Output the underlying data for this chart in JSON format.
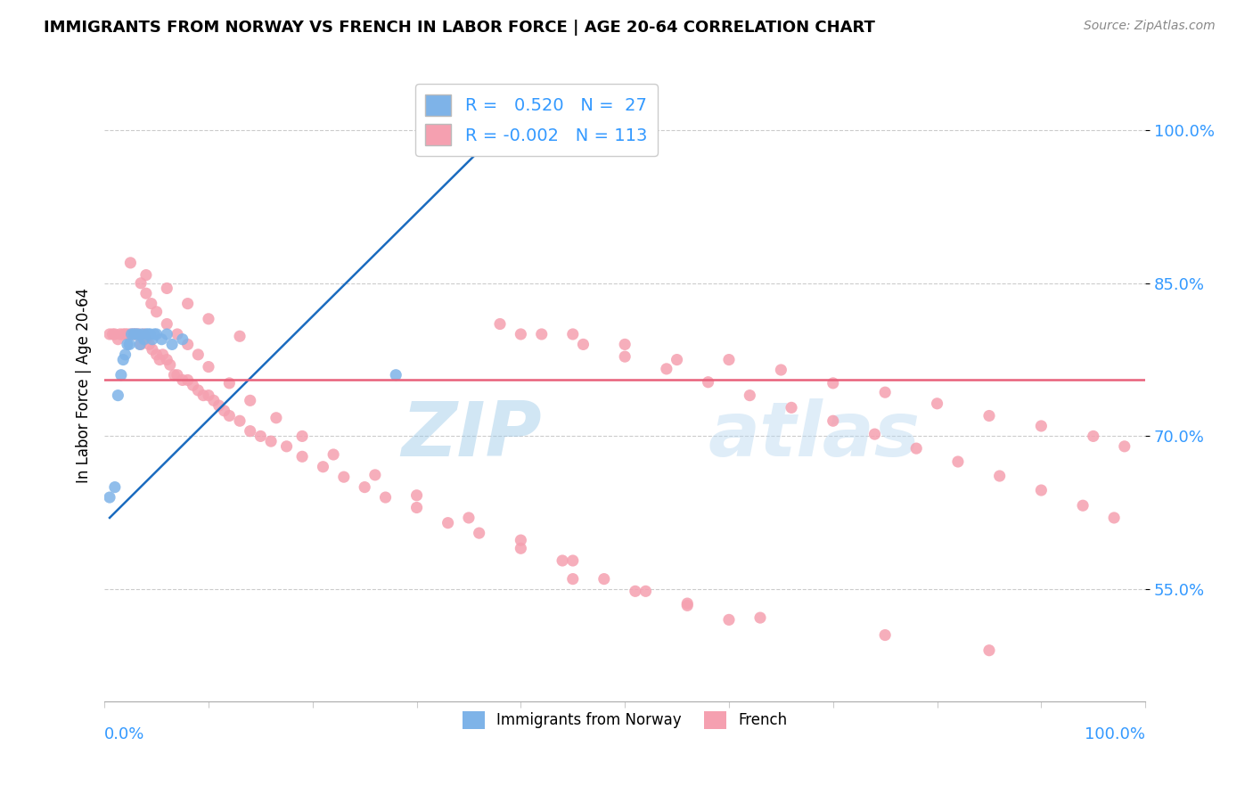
{
  "title": "IMMIGRANTS FROM NORWAY VS FRENCH IN LABOR FORCE | AGE 20-64 CORRELATION CHART",
  "source_text": "Source: ZipAtlas.com",
  "ylabel": "In Labor Force | Age 20-64",
  "xlim": [
    0.0,
    1.0
  ],
  "ylim": [
    0.44,
    1.06
  ],
  "yticks": [
    0.55,
    0.7,
    0.85,
    1.0
  ],
  "ytick_labels": [
    "55.0%",
    "70.0%",
    "85.0%",
    "100.0%"
  ],
  "legend_r_norway": "0.520",
  "legend_n_norway": "27",
  "legend_r_french": "-0.002",
  "legend_n_french": "113",
  "norway_color": "#7eb3e8",
  "french_color": "#f5a0b0",
  "norway_trend_color": "#1a6bbf",
  "french_trend_color": "#e8607a",
  "watermark_zip": "ZIP",
  "watermark_atlas": "atlas",
  "tick_color": "#3399ff",
  "norway_x": [
    0.005,
    0.01,
    0.013,
    0.016,
    0.018,
    0.02,
    0.022,
    0.024,
    0.026,
    0.028,
    0.03,
    0.032,
    0.034,
    0.036,
    0.038,
    0.04,
    0.042,
    0.044,
    0.046,
    0.048,
    0.05,
    0.055,
    0.06,
    0.065,
    0.075,
    0.28,
    0.38
  ],
  "norway_y": [
    0.64,
    0.65,
    0.74,
    0.76,
    0.775,
    0.78,
    0.79,
    0.79,
    0.8,
    0.8,
    0.8,
    0.8,
    0.79,
    0.8,
    0.795,
    0.8,
    0.8,
    0.8,
    0.795,
    0.8,
    0.8,
    0.795,
    0.8,
    0.79,
    0.795,
    0.76,
    0.985
  ],
  "french_x": [
    0.005,
    0.008,
    0.01,
    0.013,
    0.015,
    0.018,
    0.02,
    0.022,
    0.025,
    0.028,
    0.03,
    0.033,
    0.035,
    0.038,
    0.04,
    0.043,
    0.046,
    0.05,
    0.053,
    0.056,
    0.06,
    0.063,
    0.067,
    0.07,
    0.075,
    0.08,
    0.085,
    0.09,
    0.095,
    0.1,
    0.105,
    0.11,
    0.115,
    0.12,
    0.13,
    0.14,
    0.15,
    0.16,
    0.175,
    0.19,
    0.21,
    0.23,
    0.25,
    0.27,
    0.3,
    0.33,
    0.36,
    0.4,
    0.44,
    0.48,
    0.52,
    0.56,
    0.6,
    0.4,
    0.45,
    0.5,
    0.55,
    0.6,
    0.65,
    0.7,
    0.75,
    0.8,
    0.85,
    0.9,
    0.95,
    0.98,
    0.035,
    0.04,
    0.045,
    0.05,
    0.06,
    0.07,
    0.08,
    0.09,
    0.1,
    0.12,
    0.14,
    0.165,
    0.19,
    0.22,
    0.26,
    0.3,
    0.35,
    0.4,
    0.45,
    0.38,
    0.42,
    0.46,
    0.5,
    0.54,
    0.58,
    0.62,
    0.66,
    0.7,
    0.74,
    0.78,
    0.82,
    0.86,
    0.9,
    0.94,
    0.97,
    0.025,
    0.04,
    0.06,
    0.08,
    0.1,
    0.13,
    0.45,
    0.51,
    0.56,
    0.63,
    0.75,
    0.85
  ],
  "french_y": [
    0.8,
    0.8,
    0.8,
    0.795,
    0.8,
    0.8,
    0.8,
    0.8,
    0.8,
    0.8,
    0.8,
    0.8,
    0.79,
    0.8,
    0.795,
    0.79,
    0.785,
    0.78,
    0.775,
    0.78,
    0.775,
    0.77,
    0.76,
    0.76,
    0.755,
    0.755,
    0.75,
    0.745,
    0.74,
    0.74,
    0.735,
    0.73,
    0.725,
    0.72,
    0.715,
    0.705,
    0.7,
    0.695,
    0.69,
    0.68,
    0.67,
    0.66,
    0.65,
    0.64,
    0.63,
    0.615,
    0.605,
    0.59,
    0.578,
    0.56,
    0.548,
    0.534,
    0.52,
    0.8,
    0.8,
    0.79,
    0.775,
    0.775,
    0.765,
    0.752,
    0.743,
    0.732,
    0.72,
    0.71,
    0.7,
    0.69,
    0.85,
    0.84,
    0.83,
    0.822,
    0.81,
    0.8,
    0.79,
    0.78,
    0.768,
    0.752,
    0.735,
    0.718,
    0.7,
    0.682,
    0.662,
    0.642,
    0.62,
    0.598,
    0.578,
    0.81,
    0.8,
    0.79,
    0.778,
    0.766,
    0.753,
    0.74,
    0.728,
    0.715,
    0.702,
    0.688,
    0.675,
    0.661,
    0.647,
    0.632,
    0.62,
    0.87,
    0.858,
    0.845,
    0.83,
    0.815,
    0.798,
    0.56,
    0.548,
    0.536,
    0.522,
    0.505,
    0.49
  ],
  "french_trend_y": [
    0.755,
    0.755
  ],
  "xtick_positions": [
    0.0,
    0.1,
    0.2,
    0.3,
    0.4,
    0.5,
    0.6,
    0.7,
    0.8,
    0.9,
    1.0
  ]
}
